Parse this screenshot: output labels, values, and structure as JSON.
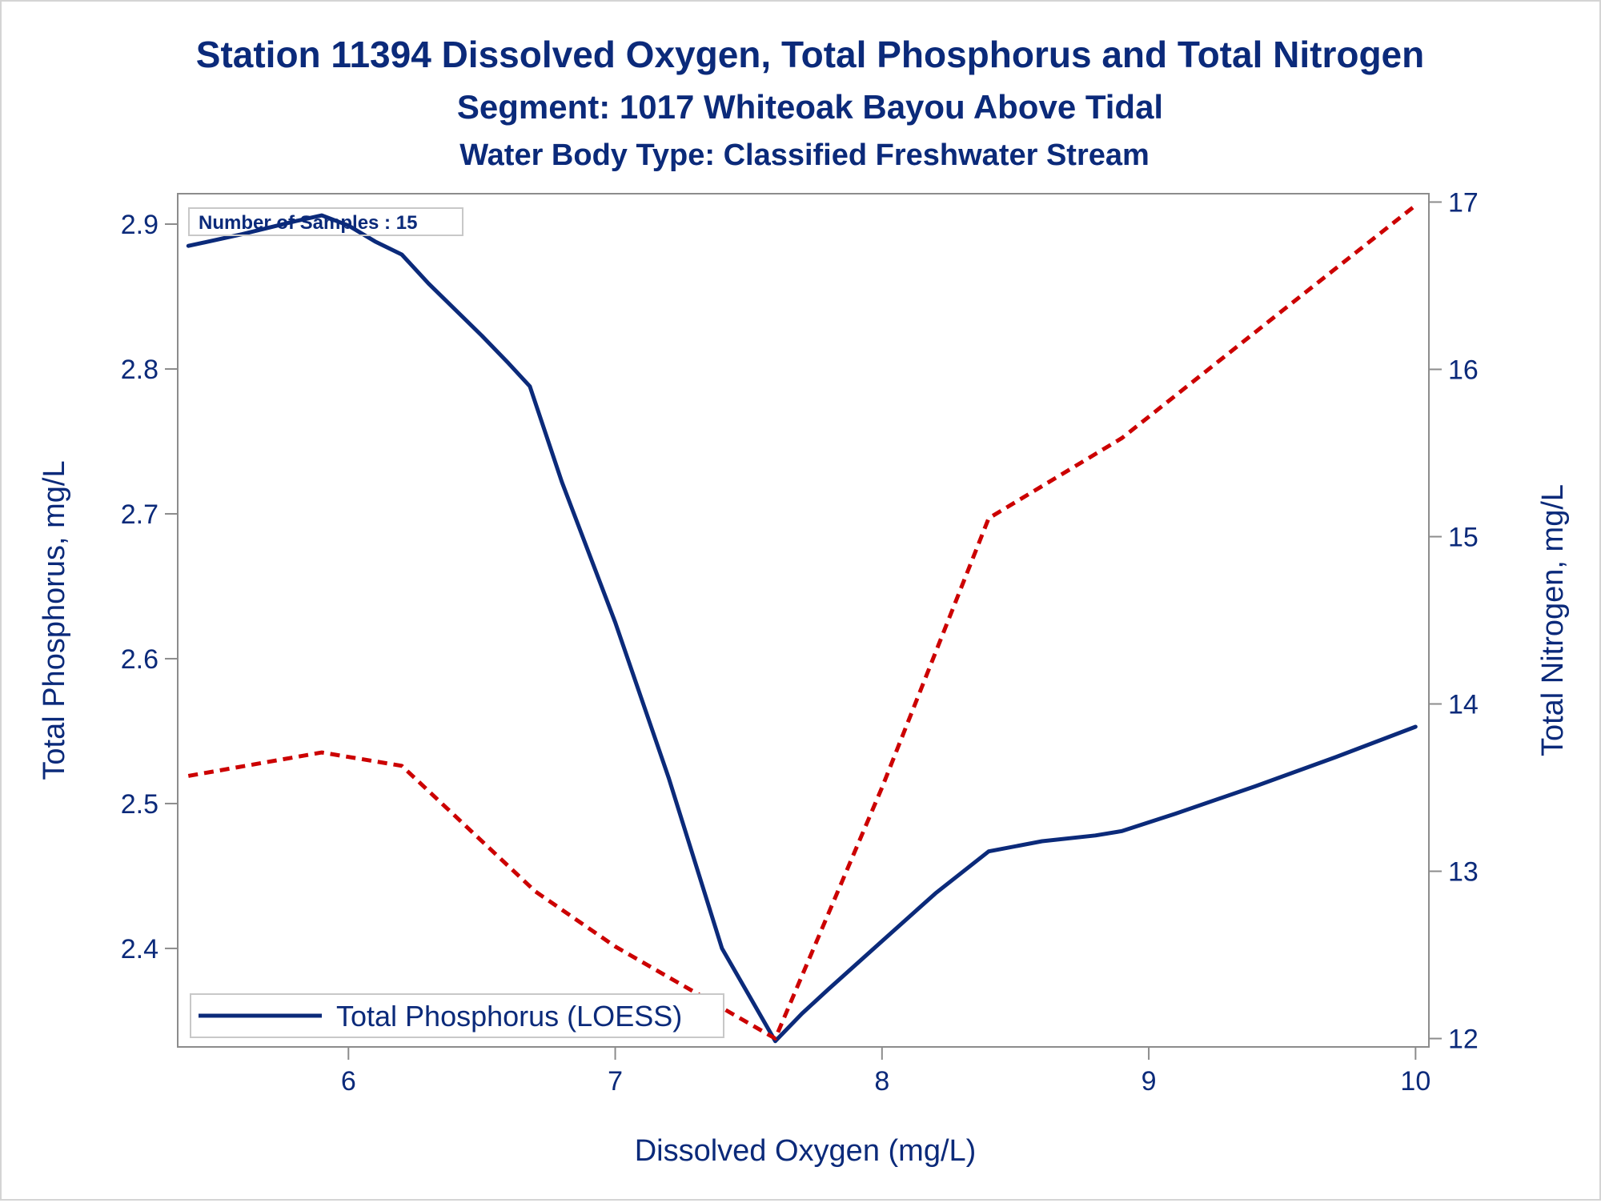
{
  "chart_data": {
    "type": "line",
    "title": "Station 11394  Dissolved Oxygen, Total Phosphorus and Total Nitrogen",
    "subtitle": "Segment: 1017  Whiteoak Bayou Above Tidal",
    "subtitle2": "Water Body Type: Classified Freshwater Stream",
    "xlabel": "Dissolved Oxygen (mg/L)",
    "ylabel": "Total Phosphorus, mg/L",
    "y2label": "Total Nitrogen, mg/L",
    "xlim": [
      5.36,
      10.05
    ],
    "ylim": [
      2.332,
      2.921
    ],
    "y2lim": [
      11.95,
      17.05
    ],
    "x_ticks": [
      "6",
      "7",
      "8",
      "9",
      "10"
    ],
    "y_ticks": [
      "2.4",
      "2.5",
      "2.6",
      "2.7",
      "2.8",
      "2.9"
    ],
    "y2_ticks": [
      "12",
      "13",
      "14",
      "15",
      "16",
      "17"
    ],
    "grid": false,
    "annotation": "Number of Samples : 15",
    "legend": {
      "position": "bottom-left",
      "entries": [
        "Total Phosphorus (LOESS)"
      ]
    },
    "series": [
      {
        "name": "Total Phosphorus (LOESS)",
        "axis": "left",
        "color": "#0b2a7a",
        "style": "solid",
        "x": [
          5.4,
          5.6,
          5.8,
          5.9,
          6.0,
          6.1,
          6.2,
          6.3,
          6.5,
          6.6,
          6.68,
          6.8,
          7.0,
          7.2,
          7.4,
          7.5,
          7.6,
          7.7,
          7.8,
          8.0,
          8.2,
          8.4,
          8.6,
          8.8,
          8.9,
          9.1,
          9.4,
          9.7,
          10.0
        ],
        "y": [
          2.885,
          2.893,
          2.902,
          2.906,
          2.899,
          2.888,
          2.879,
          2.859,
          2.823,
          2.804,
          2.788,
          2.722,
          2.625,
          2.518,
          2.4,
          2.368,
          2.336,
          2.355,
          2.372,
          2.405,
          2.438,
          2.467,
          2.474,
          2.478,
          2.481,
          2.493,
          2.512,
          2.532,
          2.553
        ]
      },
      {
        "name": "",
        "axis": "right",
        "color": "#cc0000",
        "style": "dashed",
        "x": [
          5.4,
          5.9,
          6.2,
          6.7,
          7.0,
          7.6,
          8.0,
          8.4,
          8.9,
          9.5,
          10.0
        ],
        "y": [
          13.57,
          13.71,
          13.63,
          12.88,
          12.55,
          12.0,
          13.5,
          15.11,
          15.59,
          16.35,
          16.98
        ]
      }
    ]
  }
}
